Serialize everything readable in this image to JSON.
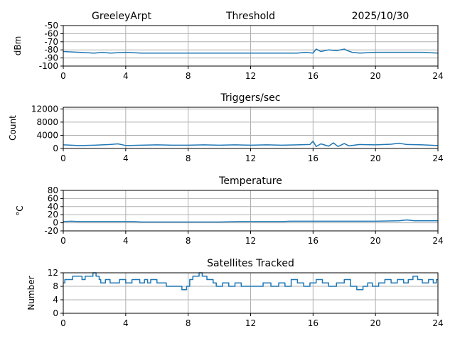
{
  "header": {
    "station": "GreeleyArpt",
    "date": "2025/10/30"
  },
  "chart_data": [
    {
      "type": "line",
      "title": "Threshold",
      "ylabel": "dBm",
      "xlabel": "",
      "xlim": [
        0,
        24
      ],
      "xticks": [
        0,
        4,
        8,
        12,
        16,
        20,
        24
      ],
      "ylim": [
        -100,
        -50
      ],
      "yticks": [
        -100,
        -90,
        -80,
        -70,
        -60,
        -50
      ],
      "grid": true,
      "color": "#1f77b4",
      "x": [
        0,
        1,
        2,
        2.5,
        3,
        4,
        5,
        6,
        8,
        10,
        12,
        14,
        15,
        15.5,
        16,
        16.2,
        16.5,
        17,
        17.5,
        18,
        18.2,
        18.5,
        19,
        20,
        21,
        22,
        23,
        24
      ],
      "y": [
        -82,
        -83,
        -84,
        -83,
        -84,
        -83,
        -84,
        -84,
        -84,
        -84,
        -84,
        -84,
        -84,
        -83,
        -84,
        -79,
        -82,
        -80,
        -81,
        -79,
        -81,
        -83,
        -84,
        -83,
        -83,
        -83,
        -83,
        -84
      ]
    },
    {
      "type": "line",
      "title": "Triggers/sec",
      "ylabel": "Count",
      "xlabel": "",
      "xlim": [
        0,
        24
      ],
      "xticks": [
        0,
        4,
        8,
        12,
        16,
        20,
        24
      ],
      "ylim": [
        0,
        12500
      ],
      "yticks": [
        0,
        4000,
        8000,
        12000
      ],
      "grid": true,
      "color": "#1f77b4",
      "x": [
        0,
        1,
        2,
        3,
        3.5,
        4,
        5,
        6,
        7,
        8,
        9,
        10,
        11,
        12,
        13,
        14,
        15,
        15.8,
        16,
        16.2,
        16.5,
        17,
        17.3,
        17.6,
        18,
        18.3,
        19,
        20,
        21,
        21.5,
        22,
        23,
        24
      ],
      "y": [
        1100,
        900,
        1000,
        1200,
        1400,
        900,
        1000,
        1100,
        1000,
        1000,
        1100,
        1000,
        1100,
        1000,
        1100,
        1000,
        1100,
        1200,
        2200,
        600,
        1400,
        700,
        1700,
        600,
        1500,
        800,
        1200,
        1100,
        1300,
        1600,
        1200,
        1100,
        900
      ]
    },
    {
      "type": "line",
      "title": "Temperature",
      "ylabel": "°C",
      "xlabel": "",
      "xlim": [
        0,
        24
      ],
      "xticks": [
        0,
        4,
        8,
        12,
        16,
        20,
        24
      ],
      "ylim": [
        -20,
        80
      ],
      "yticks": [
        -20,
        0,
        20,
        40,
        60,
        80
      ],
      "grid": true,
      "color": "#1f77b4",
      "x": [
        0,
        0.5,
        1,
        4.5,
        5,
        10,
        11.2,
        14,
        14.5,
        16,
        20,
        21.5,
        22,
        22.5,
        24
      ],
      "y": [
        3,
        4,
        3,
        3,
        2,
        2,
        3,
        3,
        4,
        4,
        4,
        5,
        7,
        5,
        5
      ]
    },
    {
      "type": "line",
      "title": "Satellites Tracked",
      "ylabel": "Number",
      "xlabel": "",
      "xlim": [
        0,
        24
      ],
      "xticks": [
        0,
        4,
        8,
        12,
        16,
        20,
        24
      ],
      "ylim": [
        0,
        12
      ],
      "yticks": [
        0,
        4,
        8,
        12
      ],
      "grid": true,
      "color": "#1f77b4",
      "step": true,
      "x": [
        0,
        0.1,
        0.3,
        0.6,
        1.2,
        1.4,
        1.9,
        2.1,
        2.3,
        2.4,
        2.7,
        3.0,
        3.3,
        3.6,
        4.0,
        4.4,
        4.9,
        5.2,
        5.4,
        5.6,
        6.0,
        6.6,
        7.0,
        7.6,
        7.9,
        8.1,
        8.3,
        8.7,
        8.9,
        9.2,
        9.6,
        9.8,
        10.2,
        10.6,
        11.0,
        11.4,
        11.8,
        12.2,
        12.8,
        13.3,
        13.8,
        14.2,
        14.6,
        15.0,
        15.4,
        15.8,
        16.2,
        16.6,
        17.0,
        17.5,
        18.0,
        18.4,
        18.8,
        19.2,
        19.5,
        19.8,
        20.2,
        20.6,
        21.0,
        21.4,
        21.8,
        22.1,
        22.4,
        22.7,
        23.0,
        23.4,
        23.7,
        23.9
      ],
      "y": [
        9,
        10,
        10,
        11,
        10,
        11,
        12,
        11,
        10,
        9,
        10,
        9,
        9,
        10,
        9,
        10,
        9,
        10,
        9,
        10,
        9,
        8,
        8,
        7,
        8,
        10,
        11,
        12,
        11,
        10,
        9,
        8,
        9,
        8,
        9,
        8,
        8,
        8,
        9,
        8,
        9,
        8,
        10,
        9,
        8,
        9,
        10,
        9,
        8,
        9,
        10,
        8,
        7,
        8,
        9,
        8,
        9,
        10,
        9,
        10,
        9,
        10,
        11,
        10,
        9,
        10,
        9,
        10
      ]
    }
  ]
}
